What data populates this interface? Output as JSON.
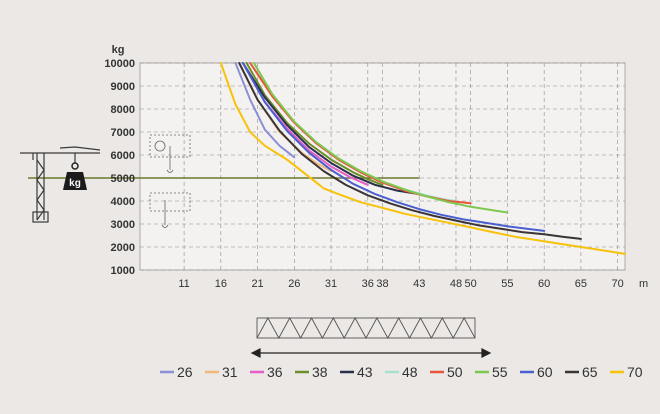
{
  "chart_data": {
    "type": "line",
    "xlabel": "m",
    "ylabel": "kg",
    "xlim": [
      5,
      71
    ],
    "ylim": [
      1000,
      10000
    ],
    "x_ticks": [
      11,
      16,
      21,
      26,
      31,
      36,
      38,
      43,
      48,
      50,
      55,
      60,
      65,
      70
    ],
    "y_ticks": [
      1000,
      2000,
      3000,
      4000,
      5000,
      6000,
      7000,
      8000,
      9000,
      10000
    ],
    "grid": true,
    "legend_position": "bottom",
    "series": [
      {
        "name": "26",
        "color": "#8a8fd6",
        "points": [
          [
            18,
            10000
          ],
          [
            20,
            8400
          ],
          [
            22,
            7100
          ],
          [
            24,
            6400
          ],
          [
            26,
            5900
          ]
        ]
      },
      {
        "name": "31",
        "color": "#f0b87a",
        "points": [
          [
            18.5,
            10000
          ],
          [
            21,
            8400
          ],
          [
            24,
            7000
          ],
          [
            27,
            6100
          ],
          [
            29,
            5650
          ],
          [
            31,
            5300
          ]
        ]
      },
      {
        "name": "36",
        "color": "#e85ec8",
        "points": [
          [
            19,
            10000
          ],
          [
            22,
            8300
          ],
          [
            25,
            7150
          ],
          [
            28,
            6200
          ],
          [
            31,
            5500
          ],
          [
            33.5,
            5050
          ],
          [
            36,
            4700
          ]
        ]
      },
      {
        "name": "38",
        "color": "#6b8f2a",
        "points": [
          [
            19.5,
            10000
          ],
          [
            22,
            8600
          ],
          [
            25,
            7400
          ],
          [
            28,
            6500
          ],
          [
            31,
            5800
          ],
          [
            34,
            5250
          ],
          [
            36,
            4950
          ],
          [
            38,
            4700
          ]
        ]
      },
      {
        "name": "43",
        "color": "#2b2f4a",
        "points": [
          [
            19,
            10000
          ],
          [
            22,
            8500
          ],
          [
            25,
            7300
          ],
          [
            28,
            6350
          ],
          [
            31,
            5650
          ],
          [
            34,
            5100
          ],
          [
            37,
            4700
          ],
          [
            40,
            4450
          ],
          [
            43,
            4300
          ]
        ]
      },
      {
        "name": "48",
        "color": "#a8e0cc",
        "points": [
          [
            20,
            10000
          ],
          [
            23,
            8600
          ],
          [
            26,
            7450
          ],
          [
            29,
            6550
          ],
          [
            32,
            5850
          ],
          [
            35,
            5300
          ],
          [
            38,
            4850
          ],
          [
            41,
            4500
          ],
          [
            44,
            4250
          ],
          [
            46,
            4100
          ],
          [
            48,
            4000
          ]
        ]
      },
      {
        "name": "50",
        "color": "#e8553a",
        "points": [
          [
            20,
            10000
          ],
          [
            23,
            8550
          ],
          [
            26,
            7400
          ],
          [
            29,
            6500
          ],
          [
            32,
            5800
          ],
          [
            35,
            5250
          ],
          [
            38,
            4800
          ],
          [
            41,
            4450
          ],
          [
            44,
            4200
          ],
          [
            47,
            4000
          ],
          [
            50,
            3900
          ]
        ]
      },
      {
        "name": "55",
        "color": "#7ec850",
        "points": [
          [
            20.5,
            10000
          ],
          [
            23,
            8650
          ],
          [
            26,
            7450
          ],
          [
            29,
            6550
          ],
          [
            32,
            5850
          ],
          [
            35,
            5300
          ],
          [
            38,
            4850
          ],
          [
            41,
            4500
          ],
          [
            44,
            4200
          ],
          [
            47,
            3950
          ],
          [
            50,
            3750
          ],
          [
            53,
            3600
          ],
          [
            55,
            3500
          ]
        ]
      },
      {
        "name": "60",
        "color": "#4a5fd0",
        "points": [
          [
            19,
            10000
          ],
          [
            22,
            8300
          ],
          [
            25,
            7050
          ],
          [
            28,
            6100
          ],
          [
            31,
            5350
          ],
          [
            34,
            4750
          ],
          [
            37,
            4300
          ],
          [
            40,
            3950
          ],
          [
            43,
            3650
          ],
          [
            46,
            3400
          ],
          [
            49,
            3200
          ],
          [
            52,
            3050
          ],
          [
            55,
            2900
          ],
          [
            57.5,
            2800
          ],
          [
            60,
            2700
          ]
        ]
      },
      {
        "name": "65",
        "color": "#3a3434",
        "points": [
          [
            18.5,
            10000
          ],
          [
            21,
            8400
          ],
          [
            24,
            7050
          ],
          [
            27,
            6050
          ],
          [
            30,
            5300
          ],
          [
            33,
            4700
          ],
          [
            36,
            4250
          ],
          [
            39,
            3900
          ],
          [
            42,
            3600
          ],
          [
            45,
            3350
          ],
          [
            48,
            3150
          ],
          [
            51,
            2950
          ],
          [
            54,
            2800
          ],
          [
            57,
            2650
          ],
          [
            60,
            2550
          ],
          [
            62.5,
            2450
          ],
          [
            65,
            2350
          ]
        ]
      },
      {
        "name": "70",
        "color": "#f7c20a",
        "points": [
          [
            16,
            10000
          ],
          [
            18,
            8200
          ],
          [
            20,
            7000
          ],
          [
            22,
            6400
          ],
          [
            25,
            5800
          ],
          [
            27,
            5300
          ],
          [
            29,
            4800
          ],
          [
            30,
            4550
          ],
          [
            32,
            4300
          ],
          [
            35,
            3950
          ],
          [
            38,
            3700
          ],
          [
            41,
            3450
          ],
          [
            44,
            3250
          ],
          [
            47,
            3050
          ],
          [
            50,
            2850
          ],
          [
            53,
            2650
          ],
          [
            56,
            2450
          ],
          [
            59,
            2300
          ],
          [
            62,
            2150
          ],
          [
            65,
            2000
          ],
          [
            68,
            1850
          ],
          [
            71,
            1700
          ]
        ]
      }
    ],
    "reference_line_y": 5000
  }
}
